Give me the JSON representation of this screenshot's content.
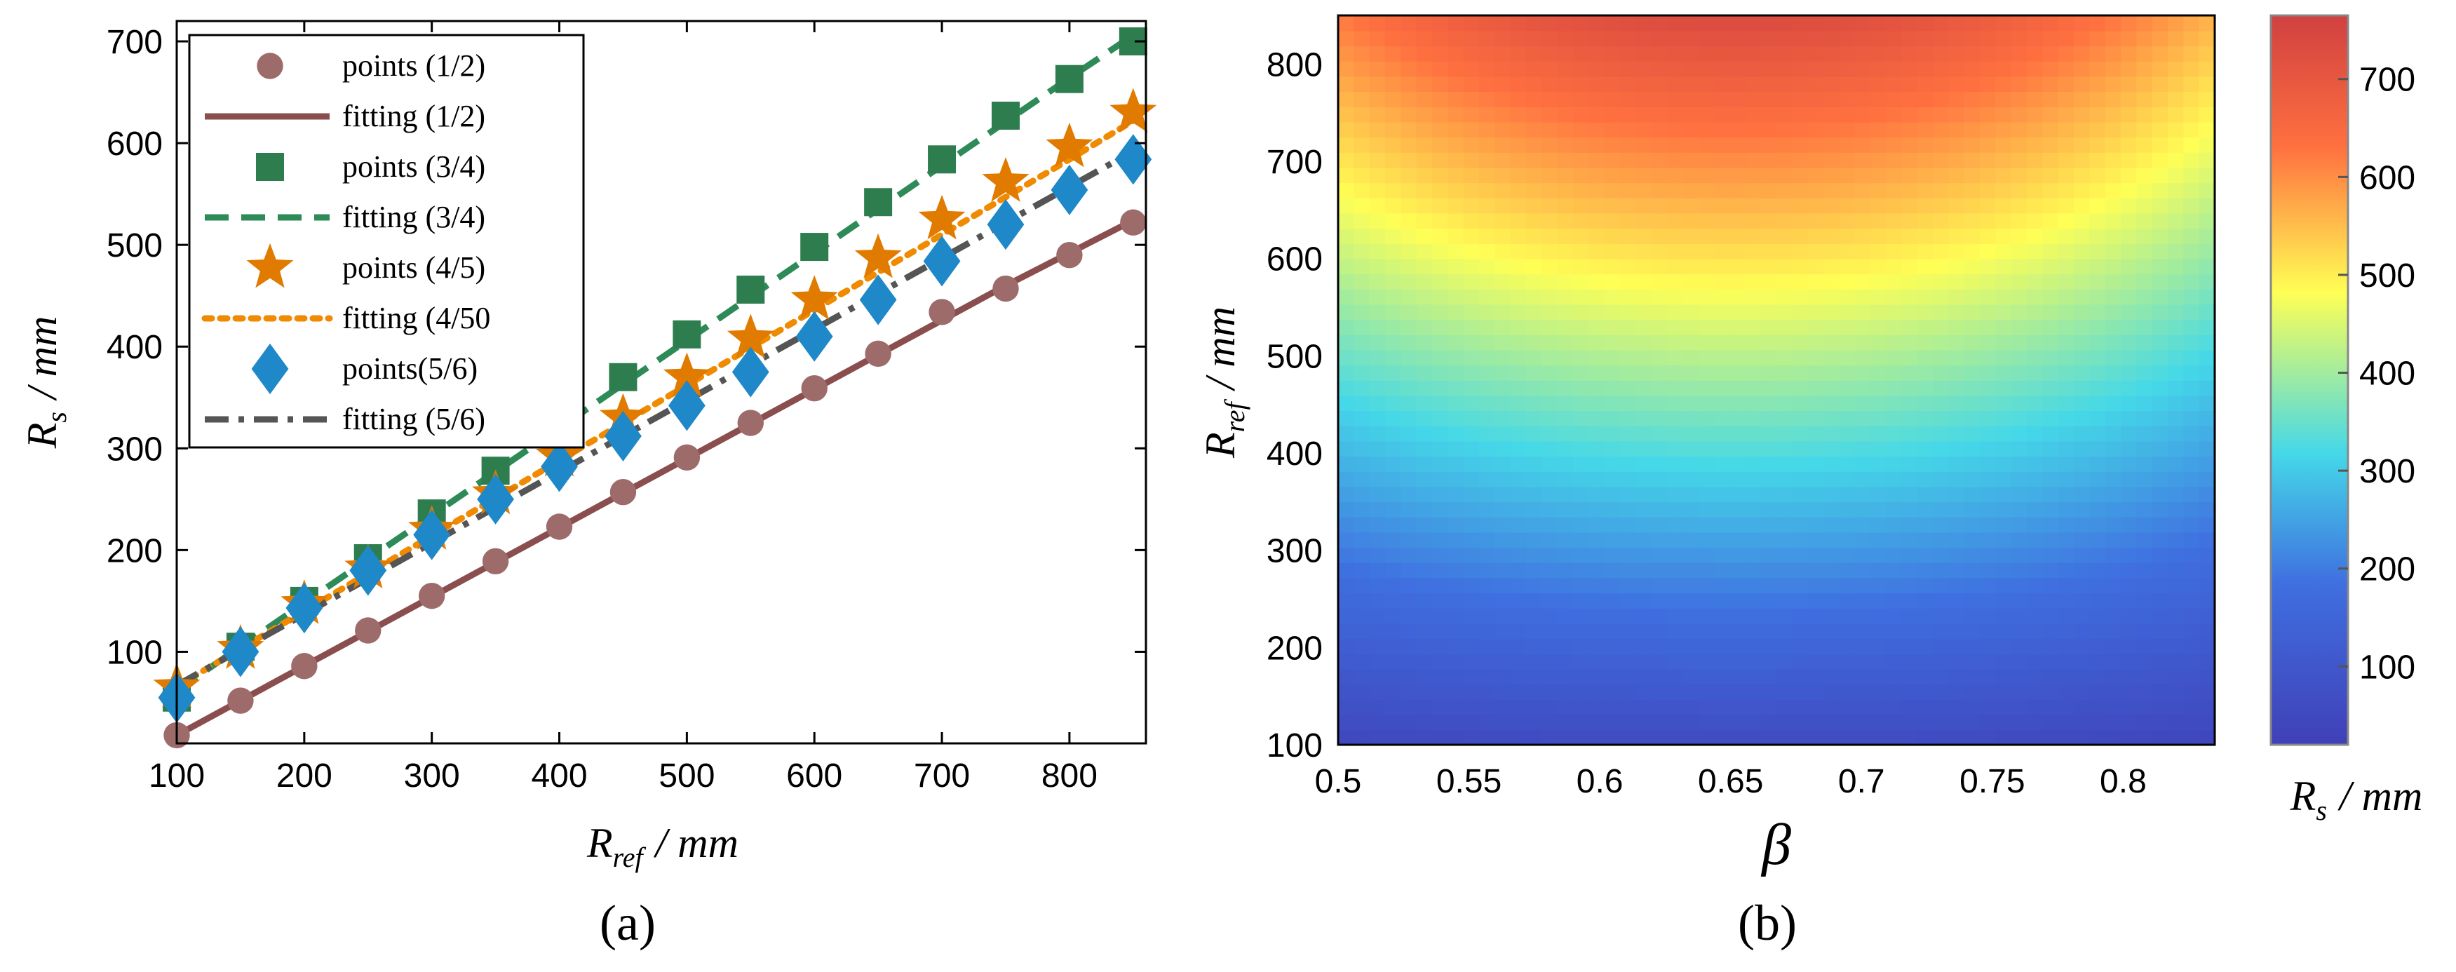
{
  "chart_data": [
    {
      "type": "line",
      "panel_label": "(a)",
      "xlabel": {
        "symbol": "R",
        "subscript": "ref",
        "unit": "/ mm"
      },
      "ylabel": {
        "symbol": "R",
        "subscript": "s",
        "unit": "/ mm"
      },
      "xlim": [
        100,
        860
      ],
      "ylim": [
        10,
        720
      ],
      "xticks": [
        100,
        200,
        300,
        400,
        500,
        600,
        700,
        800
      ],
      "yticks": [
        100,
        200,
        300,
        400,
        500,
        600,
        700
      ],
      "legend_position": "top-left",
      "x": [
        100,
        150,
        200,
        250,
        300,
        350,
        400,
        450,
        500,
        550,
        600,
        650,
        700,
        750,
        800,
        850
      ],
      "series": [
        {
          "name": "points (1/2)",
          "kind": "points",
          "marker": "circle",
          "color": "#9E6B6B",
          "values": [
            18,
            52,
            86,
            121,
            155,
            189,
            223,
            257,
            291,
            325,
            359,
            393,
            434,
            457,
            490,
            522
          ]
        },
        {
          "name": "fitting (1/2)",
          "kind": "fit",
          "dash": "solid",
          "color": "#8B4E4E",
          "values": [
            18,
            52,
            86,
            120,
            154,
            188,
            222,
            256,
            290,
            324,
            358,
            392,
            426,
            460,
            492,
            524
          ]
        },
        {
          "name": "points (3/4)",
          "kind": "points",
          "marker": "square",
          "color": "#2E7D4F",
          "values": [
            55,
            105,
            150,
            192,
            236,
            278,
            322,
            370,
            412,
            456,
            498,
            542,
            584,
            627,
            663,
            700
          ]
        },
        {
          "name": "fitting (3/4)",
          "kind": "fit",
          "dash": "dashed",
          "color": "#2E8B57",
          "values": [
            62,
            105,
            148,
            191,
            234,
            277,
            320,
            363,
            406,
            449,
            492,
            535,
            578,
            621,
            664,
            706
          ]
        },
        {
          "name": "points (4/5)",
          "kind": "points",
          "marker": "star",
          "color": "#E07B00",
          "values": [
            65,
            103,
            147,
            182,
            220,
            255,
            292,
            330,
            370,
            408,
            446,
            487,
            525,
            562,
            596,
            630
          ]
        },
        {
          "name": "fitting (4/50",
          "kind": "fit",
          "dash": "dotted",
          "color": "#F08A00",
          "values": [
            66,
            103,
            140,
            177,
            214,
            251,
            288,
            325,
            362,
            399,
            436,
            473,
            510,
            547,
            584,
            622
          ]
        },
        {
          "name": "points(5/6)",
          "kind": "points",
          "marker": "diamond",
          "color": "#1E88C8",
          "values": [
            55,
            100,
            143,
            180,
            215,
            250,
            282,
            312,
            342,
            375,
            410,
            446,
            484,
            520,
            554,
            584
          ]
        },
        {
          "name": "fitting (5/6)",
          "kind": "fit",
          "dash": "dashdot",
          "color": "#555555",
          "values": [
            67,
            102,
            137,
            172,
            207,
            242,
            277,
            312,
            347,
            382,
            417,
            452,
            487,
            522,
            557,
            592
          ]
        }
      ]
    },
    {
      "type": "heatmap",
      "panel_label": "(b)",
      "xlabel": {
        "symbol": "β"
      },
      "ylabel": {
        "symbol": "R",
        "subscript": "ref",
        "unit": "/ mm"
      },
      "xlim": [
        0.5,
        0.835
      ],
      "ylim": [
        100,
        850
      ],
      "xticks": [
        0.5,
        0.55,
        0.6,
        0.65,
        0.7,
        0.75,
        0.8
      ],
      "xtick_labels": [
        "0.5",
        "0.55",
        "0.6",
        "0.65",
        "0.7",
        "0.75",
        "0.8"
      ],
      "yticks": [
        100,
        200,
        300,
        400,
        500,
        600,
        700,
        800
      ],
      "value_model": "Rs ≈ R_ref × (0.66 + 0.24·(1 − ((β − 0.65)/0.2)²))",
      "colorbar": {
        "label": {
          "symbol": "R",
          "subscript": "s",
          "unit": "/ mm"
        },
        "range": [
          20,
          765
        ],
        "ticks": [
          100,
          200,
          300,
          400,
          500,
          600,
          700
        ],
        "colormap": [
          "#4040B8",
          "#3F6FE0",
          "#45D8E8",
          "#FFFF55",
          "#FF7040",
          "#D04040"
        ]
      }
    }
  ]
}
